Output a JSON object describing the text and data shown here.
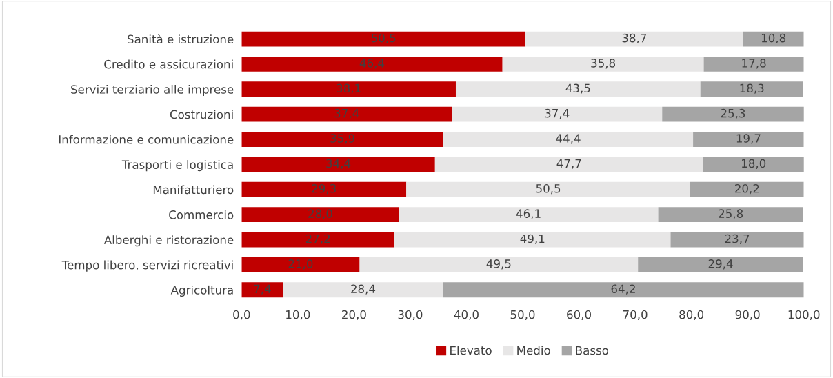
{
  "chart_data": {
    "type": "bar",
    "orientation": "horizontal",
    "stacked": true,
    "categories": [
      "Sanità e istruzione",
      "Credito e assicurazioni",
      "Servizi terziario alle imprese",
      "Costruzioni",
      "Informazione e comunicazione",
      "Trasporti e logistica",
      "Manifatturiero",
      "Commercio",
      "Alberghi e ristorazione",
      "Tempo libero, servizi ricreativi",
      "Agricoltura"
    ],
    "series": [
      {
        "name": "Elevato",
        "color": "#c00000",
        "values": [
          50.5,
          46.4,
          38.1,
          37.4,
          35.9,
          34.4,
          29.3,
          28.0,
          27.2,
          21.0,
          7.4
        ],
        "value_labels": [
          "50,5",
          "46,4",
          "38,1",
          "37,4",
          "35,9",
          "34,4",
          "29,3",
          "28,0",
          "27,2",
          "21,0",
          "7,4"
        ]
      },
      {
        "name": "Medio",
        "color": "#e7e6e6",
        "values": [
          38.7,
          35.8,
          43.5,
          37.4,
          44.4,
          47.7,
          50.5,
          46.1,
          49.1,
          49.5,
          28.4
        ],
        "value_labels": [
          "38,7",
          "35,8",
          "43,5",
          "37,4",
          "44,4",
          "47,7",
          "50,5",
          "46,1",
          "49,1",
          "49,5",
          "28,4"
        ]
      },
      {
        "name": "Basso",
        "color": "#a5a5a5",
        "values": [
          10.8,
          17.8,
          18.3,
          25.3,
          19.7,
          18.0,
          20.2,
          25.8,
          23.7,
          29.4,
          64.2
        ],
        "value_labels": [
          "10,8",
          "17,8",
          "18,3",
          "25,3",
          "19,7",
          "18,0",
          "20,2",
          "25,8",
          "23,7",
          "29,4",
          "64,2"
        ]
      }
    ],
    "xlim": [
      0,
      100
    ],
    "xticks": [
      {
        "value": 0,
        "label": "0,0"
      },
      {
        "value": 10,
        "label": "10,0"
      },
      {
        "value": 20,
        "label": "20,0"
      },
      {
        "value": 30,
        "label": "30,0"
      },
      {
        "value": 40,
        "label": "40,0"
      },
      {
        "value": 50,
        "label": "50,0"
      },
      {
        "value": 60,
        "label": "60,0"
      },
      {
        "value": 70,
        "label": "70,0"
      },
      {
        "value": 80,
        "label": "80,0"
      },
      {
        "value": 90,
        "label": "90,0"
      },
      {
        "value": 100,
        "label": "100,0"
      }
    ],
    "legend": "bottom",
    "grid": false
  }
}
